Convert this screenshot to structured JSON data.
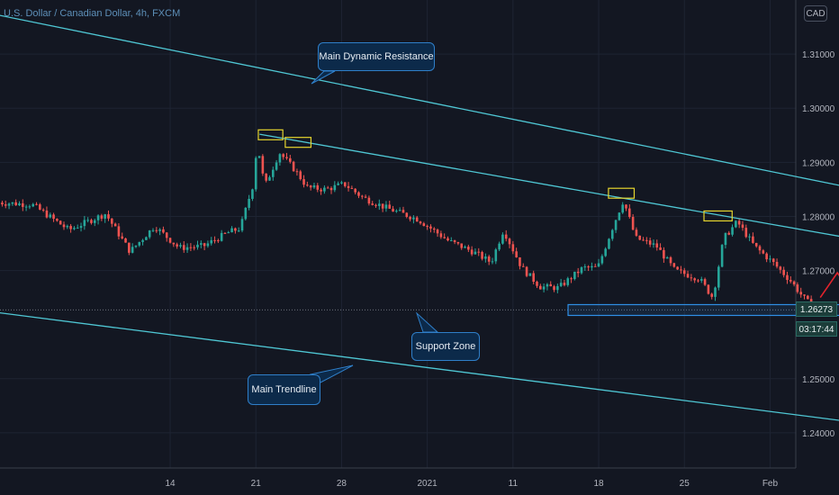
{
  "header": {
    "symbol_title": "U.S. Dollar / Canadian Dollar, 4h, FXCM",
    "currency_label": "CAD"
  },
  "annotations": {
    "resistance_label": "Main Dynamic Resistance",
    "support_label": "Support Zone",
    "trendline_label": "Main Trendline"
  },
  "price_scale": {
    "current_price": "1.26273",
    "countdown": "03:17:44"
  },
  "colors": {
    "background": "#131722",
    "grid": "#1e2433",
    "trendline": "#4fc7d4",
    "candle_up": "#26a69a",
    "candle_down": "#ef5350",
    "forecast": "#e3232c",
    "pattern_box": "#e6d52e",
    "support_box": "#2f8fe6"
  },
  "chart_data": {
    "type": "candlestick",
    "title": "U.S. Dollar / Canadian Dollar, 4h, FXCM",
    "x_ticks": [
      "14",
      "21",
      "28",
      "2021",
      "11",
      "18",
      "25",
      "Feb"
    ],
    "y_ticks": [
      "1.31000",
      "1.30000",
      "1.29000",
      "1.28000",
      "1.27000",
      "1.25000",
      "1.24000"
    ],
    "ylim": [
      1.2335,
      1.32
    ],
    "xlim_days": [
      -9.9,
      51.2
    ],
    "x_ticks_days": [
      4,
      11,
      18,
      25,
      32,
      39,
      46,
      53
    ],
    "grid": true,
    "key_prices": [
      [
        -10,
        1.2826
      ],
      [
        -7,
        1.2822
      ],
      [
        -4,
        1.2775
      ],
      [
        -1,
        1.2805
      ],
      [
        1,
        1.2735
      ],
      [
        3,
        1.2782
      ],
      [
        5,
        1.2742
      ],
      [
        7,
        1.2745
      ],
      [
        9,
        1.277
      ],
      [
        10,
        1.2778
      ],
      [
        11,
        1.2855
      ],
      [
        11.4,
        1.2935
      ],
      [
        12,
        1.2855
      ],
      [
        13.2,
        1.2918
      ],
      [
        14.5,
        1.2885
      ],
      [
        15.5,
        1.2853
      ],
      [
        17,
        1.285
      ],
      [
        18.5,
        1.286
      ],
      [
        20,
        1.2835
      ],
      [
        22,
        1.2815
      ],
      [
        24.5,
        1.2795
      ],
      [
        27,
        1.2755
      ],
      [
        29,
        1.2735
      ],
      [
        30.5,
        1.2715
      ],
      [
        31.5,
        1.2775
      ],
      [
        33,
        1.2705
      ],
      [
        34.5,
        1.267
      ],
      [
        36,
        1.2668
      ],
      [
        38,
        1.2705
      ],
      [
        39.2,
        1.2705
      ],
      [
        40.5,
        1.2785
      ],
      [
        41.3,
        1.283
      ],
      [
        42.3,
        1.276
      ],
      [
        44,
        1.2745
      ],
      [
        45.5,
        1.27
      ],
      [
        47.5,
        1.2685
      ],
      [
        48.6,
        1.265
      ],
      [
        49.5,
        1.276
      ],
      [
        50.6,
        1.279
      ],
      [
        52,
        1.2745
      ],
      [
        53.5,
        1.2715
      ],
      [
        55,
        1.268
      ],
      [
        56,
        1.265
      ],
      [
        57,
        1.2627
      ]
    ],
    "trendlines": [
      {
        "name": "Main Dynamic Resistance",
        "start": [
          -10.0,
          1.3172
        ],
        "end": [
          61.8,
          1.2843
        ]
      },
      {
        "name": "inner resistance",
        "start": [
          11.3,
          1.2952
        ],
        "end": [
          60.0,
          1.2758
        ]
      },
      {
        "name": "Main Trendline",
        "start": [
          -10.0,
          1.2622
        ],
        "end": [
          61.8,
          1.2414
        ]
      }
    ],
    "support_zone": {
      "x": [
        36.5,
        67.5
      ],
      "y": [
        1.2617,
        1.2627
      ]
    },
    "pattern_boxes": [
      {
        "x": [
          11.2,
          13.2
        ],
        "y": [
          1.2947,
          1.296
        ]
      },
      {
        "x": [
          13.4,
          15.5
        ],
        "y": [
          1.2935,
          1.2946
        ]
      },
      {
        "x": [
          39.8,
          41.9
        ],
        "y": [
          1.2837,
          1.2852
        ]
      },
      {
        "x": [
          47.6,
          49.9
        ],
        "y": [
          1.2797,
          1.281
        ]
      }
    ],
    "forecast_path": [
      [
        57.1,
        1.265
      ],
      [
        58.5,
        1.2696
      ],
      [
        62.1,
        1.2575
      ],
      [
        64.6,
        1.2617
      ],
      [
        68.7,
        1.2429
      ]
    ]
  }
}
